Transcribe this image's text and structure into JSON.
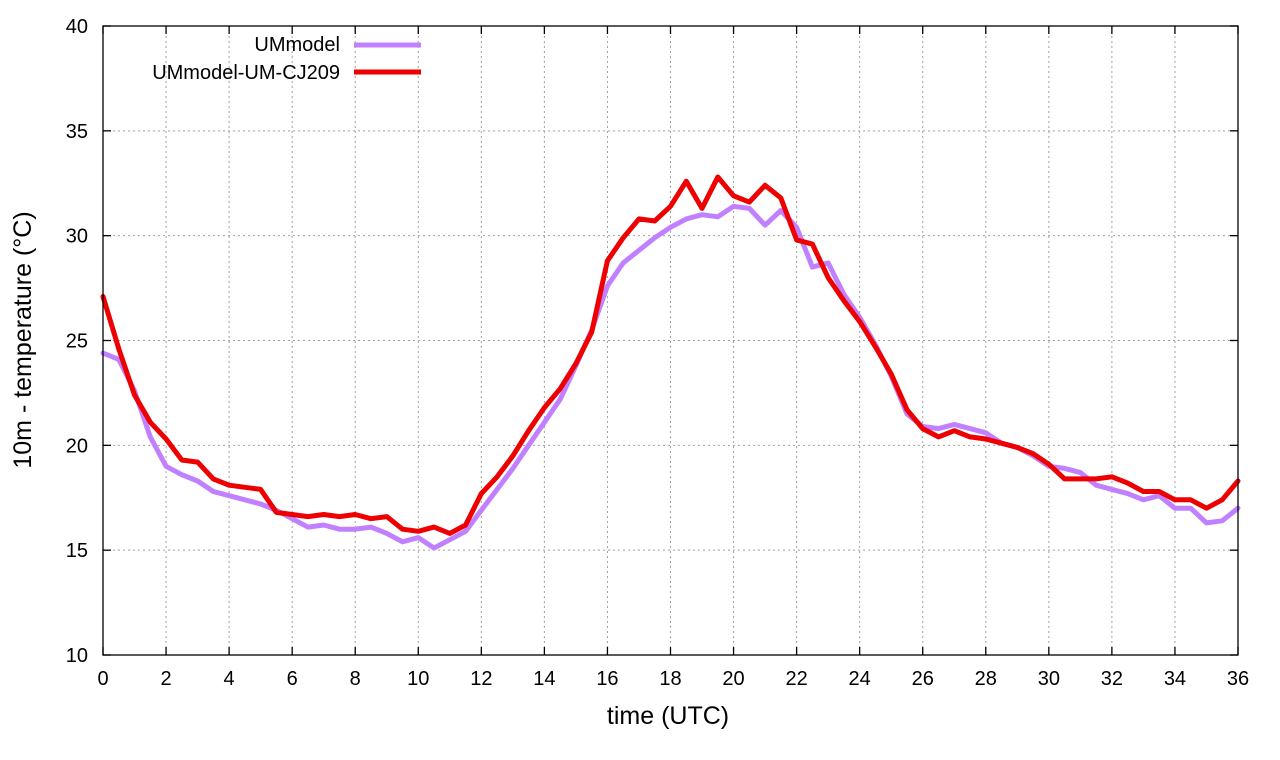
{
  "chart_data": {
    "type": "line",
    "title": "",
    "xlabel": "time (UTC)",
    "ylabel": "10m - temperature (°C)",
    "xlim": [
      0,
      36
    ],
    "ylim": [
      10,
      40
    ],
    "xticks": [
      0,
      2,
      4,
      6,
      8,
      10,
      12,
      14,
      16,
      18,
      20,
      22,
      24,
      26,
      28,
      30,
      32,
      34,
      36
    ],
    "yticks": [
      10,
      15,
      20,
      25,
      30,
      35,
      40
    ],
    "grid": true,
    "legend_position": "top-left",
    "series": [
      {
        "name": "UMmodel",
        "color": "#c080ff",
        "x": [
          0,
          0.5,
          1,
          1.5,
          2,
          2.5,
          3,
          3.5,
          4,
          4.5,
          5,
          5.5,
          6,
          6.5,
          7,
          7.5,
          8,
          8.5,
          9,
          9.5,
          10,
          10.5,
          11,
          11.5,
          12,
          12.5,
          13,
          13.5,
          14,
          14.5,
          15,
          15.5,
          16,
          16.5,
          17,
          17.5,
          18,
          18.5,
          19,
          19.5,
          20,
          20.5,
          21,
          21.5,
          22,
          22.5,
          23,
          23.5,
          24,
          24.5,
          25,
          25.5,
          26,
          26.5,
          27,
          27.5,
          28,
          28.5,
          29,
          29.5,
          30,
          30.5,
          31,
          31.5,
          32,
          32.5,
          33,
          33.5,
          34,
          34.5,
          35,
          35.5,
          36
        ],
        "y": [
          24.4,
          24.1,
          22.6,
          20.4,
          19.0,
          18.6,
          18.3,
          17.8,
          17.6,
          17.4,
          17.2,
          16.9,
          16.5,
          16.1,
          16.2,
          16.0,
          16.0,
          16.1,
          15.8,
          15.4,
          15.6,
          15.1,
          15.5,
          15.9,
          16.9,
          17.9,
          18.9,
          20.0,
          21.1,
          22.2,
          23.8,
          25.5,
          27.6,
          28.7,
          29.3,
          29.9,
          30.4,
          30.8,
          31.0,
          30.9,
          31.4,
          31.3,
          30.5,
          31.2,
          30.4,
          28.5,
          28.7,
          27.2,
          26.1,
          24.8,
          23.3,
          21.5,
          20.9,
          20.8,
          21.0,
          20.8,
          20.6,
          20.1,
          19.9,
          19.5,
          19.0,
          18.9,
          18.7,
          18.1,
          17.9,
          17.7,
          17.4,
          17.6,
          17.0,
          17.0,
          16.3,
          16.4,
          17.0
        ]
      },
      {
        "name": "UMmodel-UM-CJ209",
        "color": "#ee0000",
        "x": [
          0,
          0.5,
          1,
          1.5,
          2,
          2.5,
          3,
          3.5,
          4,
          4.5,
          5,
          5.5,
          6,
          6.5,
          7,
          7.5,
          8,
          8.5,
          9,
          9.5,
          10,
          10.5,
          11,
          11.5,
          12,
          12.5,
          13,
          13.5,
          14,
          14.5,
          15,
          15.5,
          16,
          16.5,
          17,
          17.5,
          18,
          18.5,
          19,
          19.5,
          20,
          20.5,
          21,
          21.5,
          22,
          22.5,
          23,
          23.5,
          24,
          24.5,
          25,
          25.5,
          26,
          26.5,
          27,
          27.5,
          28,
          28.5,
          29,
          29.5,
          30,
          30.5,
          31,
          31.5,
          32,
          32.5,
          33,
          33.5,
          34,
          34.5,
          35,
          35.5,
          36
        ],
        "y": [
          27.1,
          24.6,
          22.4,
          21.1,
          20.3,
          19.3,
          19.2,
          18.4,
          18.1,
          18.0,
          17.9,
          16.8,
          16.7,
          16.6,
          16.7,
          16.6,
          16.7,
          16.5,
          16.6,
          16.0,
          15.9,
          16.1,
          15.8,
          16.2,
          17.7,
          18.5,
          19.5,
          20.7,
          21.8,
          22.7,
          23.9,
          25.4,
          28.8,
          29.9,
          30.8,
          30.7,
          31.4,
          32.6,
          31.3,
          32.8,
          31.9,
          31.6,
          32.4,
          31.8,
          29.8,
          29.6,
          28.0,
          26.9,
          25.9,
          24.7,
          23.4,
          21.7,
          20.8,
          20.4,
          20.7,
          20.4,
          20.3,
          20.1,
          19.9,
          19.6,
          19.1,
          18.4,
          18.4,
          18.4,
          18.5,
          18.2,
          17.8,
          17.8,
          17.4,
          17.4,
          17.0,
          17.4,
          18.3
        ]
      }
    ]
  }
}
